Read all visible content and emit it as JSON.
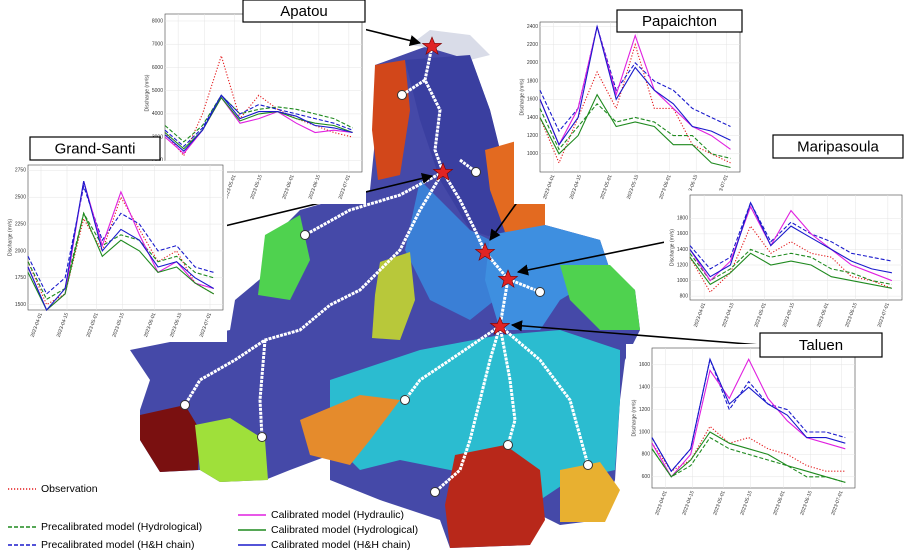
{
  "legend": [
    {
      "name": "Observation",
      "color": "#e41a1c",
      "style": "dotted"
    },
    {
      "name": "Precalibrated model (Hydrological)",
      "color": "#1f8a1f",
      "style": "dashed"
    },
    {
      "name": "Precalibrated model (H&H chain)",
      "color": "#1a1acc",
      "style": "dashed"
    },
    {
      "name": "Calibrated model (Hydraulic)",
      "color": "#e020e0",
      "style": "solid"
    },
    {
      "name": "Calibrated model (Hydrological)",
      "color": "#1f8a1f",
      "style": "solid"
    },
    {
      "name": "Calibrated model (H&H chain)",
      "color": "#1a1acc",
      "style": "solid"
    }
  ],
  "chart_data": [
    {
      "type": "line",
      "title": "Apatou",
      "y_label": "Discharge (m³/s)",
      "x": [
        "2023-03-25",
        "2023-04-04",
        "2023-04-14",
        "2023-04-24",
        "2023-05-04",
        "2023-05-14",
        "2023-05-24",
        "2023-06-03",
        "2023-06-13",
        "2023-06-23",
        "2023-07-03"
      ],
      "xlim": [
        "2023-03-25",
        "2023-07-08"
      ],
      "xticks": [
        "2023-04-01",
        "2023-04-15",
        "2023-05-01",
        "2023-05-15",
        "2023-06-01",
        "2023-06-15",
        "2023-07-01"
      ],
      "ylim": [
        1500,
        8300
      ],
      "yticks": [
        2000,
        3000,
        4000,
        5000,
        6000,
        7000,
        8000
      ],
      "grid": true,
      "series": [
        {
          "values": [
            3200,
            2200,
            4000,
            6500,
            3800,
            4800,
            4200,
            3800,
            3500,
            3200,
            3000
          ]
        },
        {
          "values": [
            3500,
            2800,
            3500,
            4800,
            4000,
            4200,
            4300,
            4200,
            4000,
            3800,
            3400
          ]
        },
        {
          "values": [
            3300,
            2600,
            3400,
            4800,
            4000,
            4400,
            4200,
            4000,
            3800,
            3600,
            3300
          ]
        },
        {
          "values": [
            3000,
            2300,
            3300,
            4700,
            3600,
            3800,
            4100,
            3600,
            3200,
            3300,
            3200
          ]
        },
        {
          "values": [
            3200,
            2500,
            3300,
            4700,
            3700,
            4000,
            4100,
            3800,
            3600,
            3500,
            3200
          ]
        },
        {
          "values": [
            3100,
            2400,
            3300,
            4800,
            3800,
            4100,
            4100,
            3900,
            3500,
            3400,
            3200
          ]
        }
      ]
    },
    {
      "type": "line",
      "title": "Papaichton",
      "y_label": "Discharge (m³/s)",
      "x": [
        "2023-03-25",
        "2023-04-04",
        "2023-04-14",
        "2023-04-24",
        "2023-05-04",
        "2023-05-14",
        "2023-05-24",
        "2023-06-03",
        "2023-06-13",
        "2023-06-23",
        "2023-07-03"
      ],
      "xlim": [
        "2023-03-25",
        "2023-07-08"
      ],
      "xticks": [
        "2023-04-01",
        "2023-04-15",
        "2023-05-01",
        "2023-05-15",
        "2023-06-01",
        "2023-06-15",
        "2023-07-01"
      ],
      "ylim": [
        800,
        2450
      ],
      "yticks": [
        1000,
        1200,
        1400,
        1600,
        1800,
        2000,
        2200,
        2400
      ],
      "grid": true,
      "series": [
        {
          "values": [
            1400,
            900,
            1400,
            1900,
            1500,
            2200,
            1500,
            1500,
            1100,
            1000,
            900
          ]
        },
        {
          "values": [
            1500,
            1050,
            1300,
            1550,
            1350,
            1400,
            1350,
            1200,
            1200,
            1000,
            950
          ]
        },
        {
          "values": [
            1700,
            1250,
            1500,
            2400,
            1700,
            2000,
            1800,
            1700,
            1500,
            1400,
            1300
          ]
        },
        {
          "values": [
            1600,
            1100,
            1500,
            2400,
            1650,
            2300,
            1700,
            1500,
            1300,
            1200,
            1050
          ]
        },
        {
          "values": [
            1400,
            1000,
            1200,
            1650,
            1300,
            1350,
            1300,
            1100,
            1100,
            900,
            850
          ]
        },
        {
          "values": [
            1600,
            1100,
            1400,
            2400,
            1600,
            1950,
            1700,
            1550,
            1300,
            1250,
            1150
          ]
        }
      ]
    },
    {
      "type": "line",
      "title": "Grand-Santi",
      "y_label": "Discharge (m³/s)",
      "x": [
        "2023-03-25",
        "2023-04-04",
        "2023-04-14",
        "2023-04-24",
        "2023-05-04",
        "2023-05-14",
        "2023-05-24",
        "2023-06-03",
        "2023-06-13",
        "2023-06-23",
        "2023-07-03"
      ],
      "xlim": [
        "2023-03-25",
        "2023-07-08"
      ],
      "xticks": [
        "2023-04-01",
        "2023-04-15",
        "2023-05-01",
        "2023-05-15",
        "2023-06-01",
        "2023-06-15",
        "2023-07-01"
      ],
      "ylim": [
        1450,
        2800
      ],
      "yticks": [
        1500,
        1750,
        2000,
        2250,
        2500,
        2750
      ],
      "grid": true,
      "series": [
        {
          "values": [
            1900,
            1500,
            1600,
            2300,
            2000,
            2500,
            2200,
            1900,
            2000,
            1700,
            1600
          ]
        },
        {
          "values": [
            1900,
            1550,
            1650,
            2350,
            2050,
            2150,
            2100,
            1900,
            1950,
            1800,
            1750
          ]
        },
        {
          "values": [
            1950,
            1600,
            1750,
            2600,
            2100,
            2350,
            2250,
            2000,
            2050,
            1850,
            1800
          ]
        },
        {
          "values": [
            1850,
            1450,
            1600,
            2650,
            2050,
            2550,
            2150,
            1800,
            1900,
            1700,
            1650
          ]
        },
        {
          "values": [
            1800,
            1450,
            1600,
            2350,
            1950,
            2100,
            2000,
            1800,
            1850,
            1700,
            1600
          ]
        },
        {
          "values": [
            1850,
            1450,
            1650,
            2650,
            2000,
            2200,
            2100,
            1850,
            1900,
            1750,
            1650
          ]
        }
      ]
    },
    {
      "type": "line",
      "title": "Maripasoula",
      "y_label": "Discharge (m³/s)",
      "x": [
        "2023-03-25",
        "2023-04-04",
        "2023-04-14",
        "2023-04-24",
        "2023-05-04",
        "2023-05-14",
        "2023-05-24",
        "2023-06-03",
        "2023-06-13",
        "2023-06-23",
        "2023-07-03"
      ],
      "xlim": [
        "2023-03-25",
        "2023-07-08"
      ],
      "xticks": [
        "2023-04-01",
        "2023-04-15",
        "2023-05-01",
        "2023-05-15",
        "2023-06-01",
        "2023-06-15",
        "2023-07-01"
      ],
      "ylim": [
        750,
        2100
      ],
      "yticks": [
        800,
        1000,
        1200,
        1400,
        1600,
        1800
      ],
      "grid": true,
      "series": [
        {
          "values": [
            1300,
            850,
            1100,
            1700,
            1350,
            1500,
            1350,
            1300,
            1050,
            1000,
            900
          ]
        },
        {
          "values": [
            1350,
            1000,
            1150,
            1400,
            1300,
            1350,
            1300,
            1150,
            1100,
            1000,
            950
          ]
        },
        {
          "values": [
            1450,
            1150,
            1300,
            2000,
            1500,
            1750,
            1600,
            1500,
            1350,
            1300,
            1250
          ]
        },
        {
          "values": [
            1400,
            1000,
            1250,
            1950,
            1450,
            1900,
            1600,
            1400,
            1200,
            1100,
            1000
          ]
        },
        {
          "values": [
            1300,
            950,
            1100,
            1350,
            1200,
            1250,
            1200,
            1050,
            1000,
            950,
            900
          ]
        },
        {
          "values": [
            1400,
            1050,
            1200,
            2000,
            1450,
            1700,
            1550,
            1400,
            1250,
            1150,
            1100
          ]
        }
      ]
    },
    {
      "type": "line",
      "title": "Taluen",
      "y_label": "Discharge (m³/s)",
      "x": [
        "2023-03-25",
        "2023-04-04",
        "2023-04-14",
        "2023-04-24",
        "2023-05-04",
        "2023-05-14",
        "2023-05-24",
        "2023-06-03",
        "2023-06-13",
        "2023-06-23",
        "2023-07-03"
      ],
      "xlim": [
        "2023-03-25",
        "2023-07-08"
      ],
      "xticks": [
        "2023-04-01",
        "2023-04-15",
        "2023-05-01",
        "2023-05-15",
        "2023-06-01",
        "2023-06-15",
        "2023-07-01"
      ],
      "ylim": [
        500,
        1750
      ],
      "yticks": [
        600,
        800,
        1000,
        1200,
        1400,
        1600
      ],
      "grid": true,
      "series": [
        {
          "values": [
            900,
            650,
            750,
            1050,
            900,
            950,
            850,
            800,
            700,
            650,
            650
          ]
        },
        {
          "values": [
            850,
            600,
            700,
            950,
            850,
            800,
            750,
            700,
            600,
            600,
            550
          ]
        },
        {
          "values": [
            950,
            650,
            850,
            1650,
            1200,
            1450,
            1250,
            1200,
            1000,
            1000,
            950
          ]
        },
        {
          "values": [
            900,
            600,
            800,
            1550,
            1300,
            1650,
            1300,
            1100,
            950,
            900,
            850
          ]
        },
        {
          "values": [
            850,
            600,
            750,
            1000,
            900,
            850,
            800,
            700,
            650,
            600,
            550
          ]
        },
        {
          "values": [
            950,
            650,
            850,
            1650,
            1250,
            1400,
            1250,
            1150,
            950,
            950,
            900
          ]
        }
      ]
    }
  ]
}
